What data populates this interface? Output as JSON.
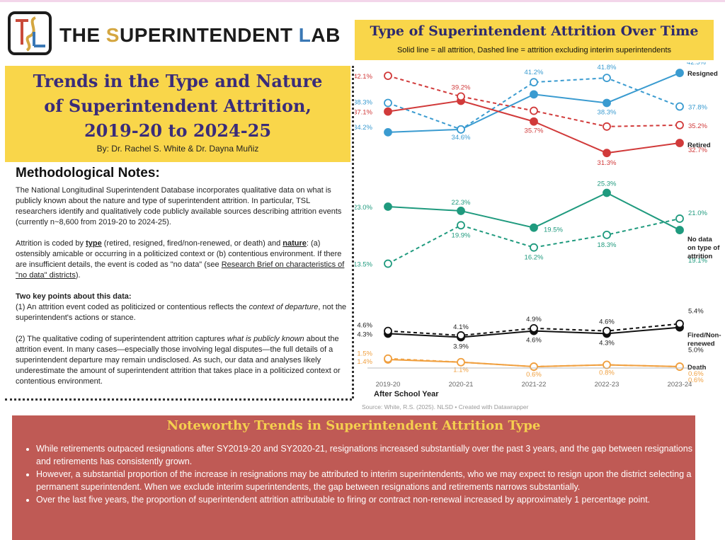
{
  "header": {
    "brand_the": "THE ",
    "brand_s": "S",
    "brand_uper": "UPERINTENDENT ",
    "brand_l": "L",
    "brand_ab": "AB"
  },
  "title": {
    "line1": "Trends in the Type and Nature",
    "line2": "of Superintendent Attrition,",
    "line3": "2019-20 to 2024-25",
    "byline": "By: Dr. Rachel S. White & Dr. Dayna Muñiz"
  },
  "methodology": {
    "heading": "Methodological Notes:",
    "p1": "The National Longitudinal Superintendent Database incorporates qualitative data on what is publicly known about the nature and type of superintendent attrition. In particular, TSL researchers identify and qualitatively code publicly available sources describing attrition events (currently n~8,600 from 2019-20 to 2024-25).",
    "p2_a": "Attrition is coded by ",
    "p2_type": "type",
    "p2_b": " (retired, resigned, fired/non-renewed, or death) and ",
    "p2_nature": "nature",
    "p2_c": ": (a) ostensibly amicable or occurring in a politicized context or (b) contentious environment. If there are insufficient details, the event is coded as \"no data\" (see ",
    "p2_link": "Research Brief on characteristics of \"no data\" districts",
    "p2_d": ").",
    "kp_heading": "Two key points about this data:",
    "kp1_a": "(1) An attrition event coded as politicized or contentious reflects the ",
    "kp1_em": "context of departure",
    "kp1_b": ", not the superintendent's actions or stance.",
    "kp2_a": "(2) The qualitative coding of superintendent attrition captures ",
    "kp2_em": "what is publicly known",
    "kp2_b": " about the attrition event. In many cases—especially those involving legal disputes—the full details of a superintendent departure may remain undisclosed. As such, our data and analyses likely underestimate the amount of superintendent attrition that takes place in a politicized context or contentious environment."
  },
  "chart_header": {
    "title": "Type of Superintendent Attrition Over Time",
    "subtitle": "Solid line = all attrition, Dashed line = attrition excluding interim superintendents"
  },
  "chart_data": {
    "type": "line",
    "x": [
      "2019-20",
      "2020-21",
      "2021-22",
      "2022-23",
      "2023-24"
    ],
    "xlabel": "After School Year",
    "source": "Source: White, R.S. (2025). NLSD • Created with Datawrapper",
    "ylim": [
      0,
      45
    ],
    "series": [
      {
        "name": "Resigned",
        "style": "solid",
        "color": "#3a9bd0",
        "values": [
          34.2,
          34.6,
          39.5,
          38.3,
          42.5
        ],
        "labels": [
          "34.2%",
          "34.6%",
          "",
          "38.3%",
          "42.5%"
        ]
      },
      {
        "name": "",
        "style": "dashed",
        "color": "#3a9bd0",
        "values": [
          38.3,
          34.6,
          41.2,
          41.8,
          37.8
        ],
        "labels": [
          "38.3%",
          "",
          "41.2%",
          "41.8%",
          "37.8%"
        ]
      },
      {
        "name": "Retired",
        "style": "solid",
        "color": "#d13a3a",
        "values": [
          37.1,
          38.6,
          35.7,
          31.3,
          32.7
        ],
        "labels": [
          "37.1%",
          "",
          "35.7%",
          "31.3%",
          "32.7%"
        ]
      },
      {
        "name": "",
        "style": "dashed",
        "color": "#d13a3a",
        "values": [
          42.1,
          39.2,
          37.2,
          35.0,
          35.2
        ],
        "labels": [
          "42.1%",
          "39.2%",
          "",
          "",
          "35.2%"
        ]
      },
      {
        "name": "No data on type of attrition",
        "style": "solid",
        "color": "#1f9a7e",
        "values": [
          23.0,
          22.3,
          19.5,
          25.3,
          19.1
        ],
        "labels": [
          "23.0%",
          "22.3%",
          "19.5%",
          "25.3%",
          "19.1%"
        ]
      },
      {
        "name": "",
        "style": "dashed",
        "color": "#1f9a7e",
        "values": [
          13.5,
          19.9,
          16.2,
          18.3,
          21.0
        ],
        "labels": [
          "13.5%",
          "19.9%",
          "16.2%",
          "18.3%",
          "21.0%"
        ]
      },
      {
        "name": "Fired/Non-renewed",
        "style": "solid",
        "color": "#111111",
        "values": [
          4.3,
          3.9,
          4.6,
          4.3,
          5.0
        ],
        "labels": [
          "4.3%",
          "3.9%",
          "4.6%",
          "4.3%",
          "5.0%"
        ]
      },
      {
        "name": "",
        "style": "dashed",
        "color": "#111111",
        "values": [
          4.6,
          4.1,
          4.9,
          4.6,
          5.4
        ],
        "labels": [
          "4.6%",
          "4.1%",
          "4.9%",
          "4.6%",
          "5.4%"
        ]
      },
      {
        "name": "Death",
        "style": "solid",
        "color": "#f0a040",
        "values": [
          1.4,
          1.1,
          0.6,
          0.8,
          0.6
        ],
        "labels": [
          "1.4%",
          "1.1%",
          "0.6%",
          "0.8%",
          "0.6%"
        ]
      },
      {
        "name": "",
        "style": "dashed",
        "color": "#f0a040",
        "values": [
          1.5,
          1.1,
          0.6,
          0.8,
          0.6
        ],
        "labels": [
          "1.5%",
          "",
          "",
          "",
          "0.6%"
        ]
      }
    ]
  },
  "bottom": {
    "title": "Noteworthy Trends in Superintendent Attrition Type",
    "bullets": [
      "While retirements outpaced resignations after SY2019-20 and SY2020-21, resignations increased substantially over the past 3 years, and the gap between resignations and retirements has consistently grown.",
      "However, a substantial proportion of the increase in resignations may be attributed to interim superintendents, who we may expect to resign upon the district selecting a permanent superintendent. When we exclude interim superintendents, the gap between resignations and retirements narrows substantially.",
      "Over the last five years, the proportion of superintendent attrition attributable to firing or contract non-renewal increased by approximately 1 percentage point."
    ]
  }
}
